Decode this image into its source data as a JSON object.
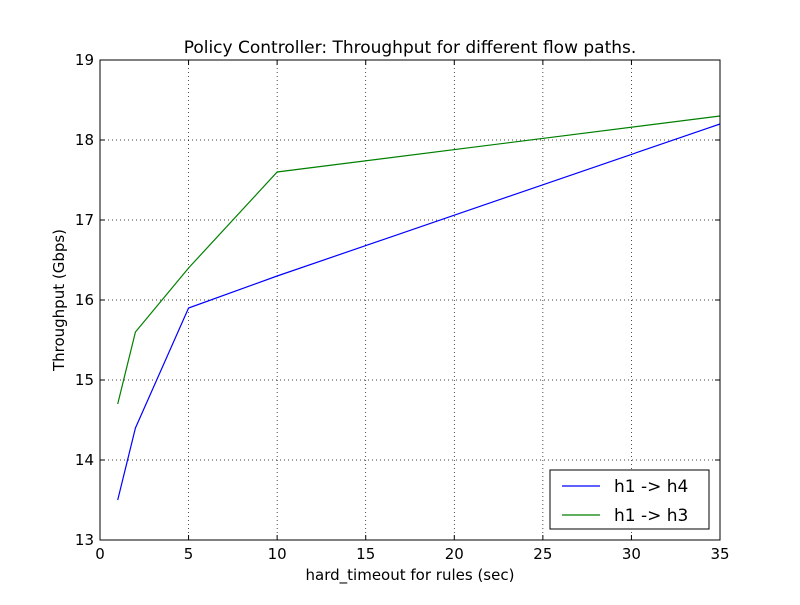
{
  "chart_data": {
    "type": "line",
    "title": "Policy Controller: Throughput for different flow paths.",
    "xlabel": "hard_timeout for rules (sec)",
    "ylabel": "Throughput (Gbps)",
    "xlim": [
      0,
      35
    ],
    "ylim": [
      13,
      19
    ],
    "xticks": [
      0,
      5,
      10,
      15,
      20,
      25,
      30,
      35
    ],
    "yticks": [
      13,
      14,
      15,
      16,
      17,
      18,
      19
    ],
    "xtick_labels": [
      "0",
      "5",
      "10",
      "15",
      "20",
      "25",
      "30",
      "35"
    ],
    "ytick_labels": [
      "13",
      "14",
      "15",
      "16",
      "17",
      "18",
      "19"
    ],
    "grid": true,
    "legend_position": "bottom-right",
    "x": [
      1,
      2,
      5,
      10,
      35
    ],
    "series": [
      {
        "name": "h1 -> h4",
        "color": "#0000ff",
        "values": [
          13.5,
          14.4,
          15.9,
          16.3,
          18.2
        ]
      },
      {
        "name": "h1 -> h3",
        "color": "#008000",
        "values": [
          14.7,
          15.6,
          16.4,
          17.6,
          18.3
        ]
      }
    ]
  }
}
